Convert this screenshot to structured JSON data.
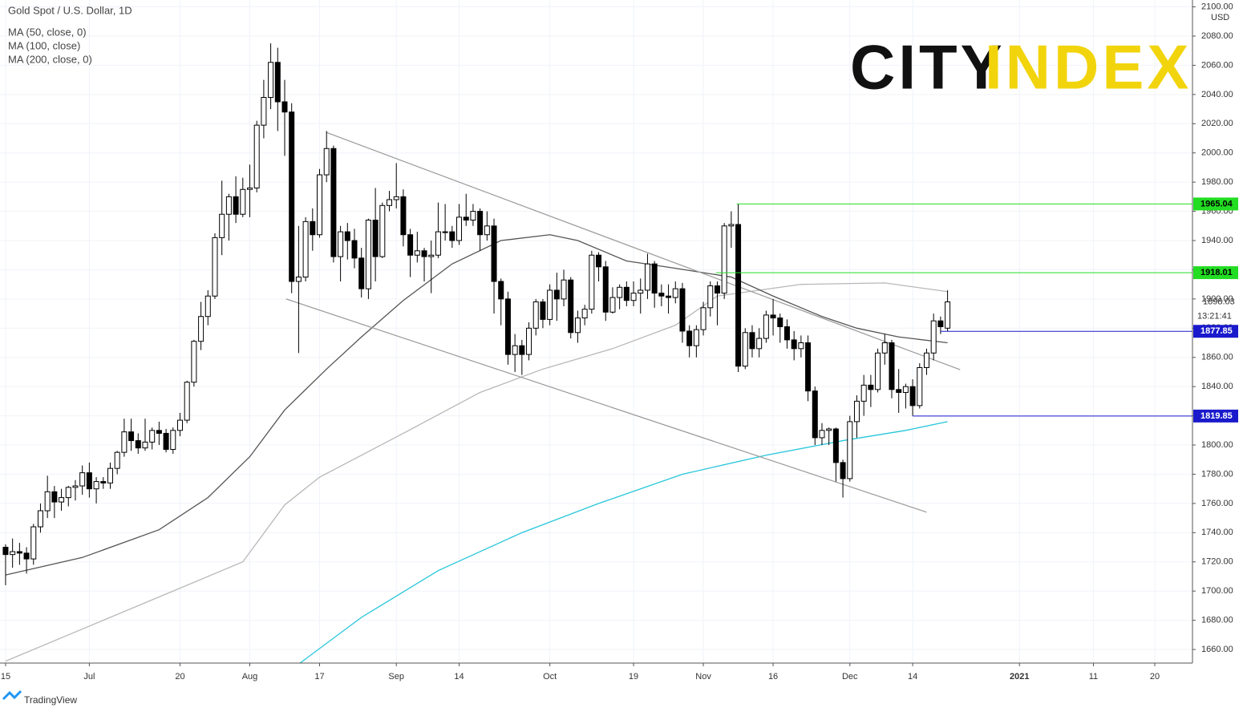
{
  "chart_data": {
    "type": "candlestick",
    "title": "Gold Spot / U.S. Dollar, 1D",
    "currency": "USD",
    "countdown": "13:21:41",
    "logo": {
      "left": "CITY",
      "right": "INDEX"
    },
    "footer": "TradingView",
    "xlim": [
      -0.8,
      170.1
    ],
    "ylim": [
      1650.7,
      2104.7
    ],
    "grid": true,
    "xticks": [
      {
        "value": 0,
        "label": "15"
      },
      {
        "value": 12,
        "label": "Jul"
      },
      {
        "value": 25,
        "label": "20"
      },
      {
        "value": 35,
        "label": "Aug"
      },
      {
        "value": 45,
        "label": "17"
      },
      {
        "value": 56,
        "label": "Sep"
      },
      {
        "value": 65,
        "label": "14"
      },
      {
        "value": 78,
        "label": "Oct"
      },
      {
        "value": 90,
        "label": "19"
      },
      {
        "value": 100,
        "label": "Nov"
      },
      {
        "value": 110,
        "label": "16"
      },
      {
        "value": 121,
        "label": "Dec"
      },
      {
        "value": 130,
        "label": "14"
      },
      {
        "value": 145.3,
        "label": "2021"
      },
      {
        "value": 155.9,
        "label": "11"
      },
      {
        "value": 164.7,
        "label": "20"
      }
    ],
    "yticks": [
      {
        "value": 1660,
        "label": "1660.00"
      },
      {
        "value": 1680,
        "label": "1680.00"
      },
      {
        "value": 1700,
        "label": "1700.00"
      },
      {
        "value": 1720,
        "label": "1720.00"
      },
      {
        "value": 1740,
        "label": "1740.00"
      },
      {
        "value": 1760,
        "label": "1760.00"
      },
      {
        "value": 1780,
        "label": "1780.00"
      },
      {
        "value": 1800,
        "label": "1800.00"
      },
      {
        "value": 1820,
        "label": "1820.00"
      },
      {
        "value": 1840,
        "label": "1840.00"
      },
      {
        "value": 1860,
        "label": "1860.00"
      },
      {
        "value": 1880,
        "label": "1880.00"
      },
      {
        "value": 1900,
        "label": "1900.00"
      },
      {
        "value": 1920,
        "label": "1920.00"
      },
      {
        "value": 1940,
        "label": "1940.00"
      },
      {
        "value": 1960,
        "label": "1960.00"
      },
      {
        "value": 1980,
        "label": "1980.00"
      },
      {
        "value": 2000,
        "label": "2000.00"
      },
      {
        "value": 2020,
        "label": "2020.00"
      },
      {
        "value": 2040,
        "label": "2040.00"
      },
      {
        "value": 2060,
        "label": "2060.00"
      },
      {
        "value": 2080,
        "label": "2080.00"
      },
      {
        "value": 2100,
        "label": "2100.00"
      }
    ],
    "up_color": "#ffffff",
    "down_color": "#000000",
    "ohlc": [
      [
        1730,
        1732,
        1704,
        1725
      ],
      [
        1725,
        1736,
        1716,
        1727
      ],
      [
        1727,
        1733,
        1718,
        1726
      ],
      [
        1726,
        1730,
        1712,
        1722
      ],
      [
        1722,
        1746,
        1718,
        1744
      ],
      [
        1744,
        1760,
        1740,
        1755
      ],
      [
        1755,
        1779,
        1750,
        1768
      ],
      [
        1768,
        1772,
        1750,
        1761
      ],
      [
        1761,
        1770,
        1755,
        1764
      ],
      [
        1764,
        1772,
        1758,
        1771
      ],
      [
        1771,
        1776,
        1762,
        1772
      ],
      [
        1772,
        1786,
        1766,
        1781
      ],
      [
        1781,
        1788,
        1764,
        1770
      ],
      [
        1770,
        1778,
        1760,
        1775
      ],
      [
        1775,
        1778,
        1770,
        1774
      ],
      [
        1774,
        1788,
        1770,
        1784
      ],
      [
        1784,
        1796,
        1780,
        1795
      ],
      [
        1795,
        1818,
        1792,
        1809
      ],
      [
        1809,
        1818,
        1796,
        1803
      ],
      [
        1803,
        1808,
        1794,
        1798
      ],
      [
        1798,
        1818,
        1796,
        1802
      ],
      [
        1802,
        1812,
        1797,
        1810
      ],
      [
        1810,
        1816,
        1800,
        1808
      ],
      [
        1808,
        1811,
        1795,
        1797
      ],
      [
        1797,
        1812,
        1794,
        1810
      ],
      [
        1810,
        1822,
        1806,
        1817
      ],
      [
        1817,
        1844,
        1815,
        1843
      ],
      [
        1843,
        1872,
        1840,
        1871
      ],
      [
        1871,
        1898,
        1865,
        1888
      ],
      [
        1888,
        1906,
        1882,
        1902
      ],
      [
        1902,
        1945,
        1900,
        1942
      ],
      [
        1942,
        1981,
        1930,
        1958
      ],
      [
        1958,
        1972,
        1940,
        1970
      ],
      [
        1970,
        1984,
        1952,
        1958
      ],
      [
        1958,
        1983,
        1956,
        1975
      ],
      [
        1975,
        1992,
        1956,
        1976
      ],
      [
        1976,
        2022,
        1973,
        2019
      ],
      [
        2019,
        2050,
        2010,
        2038
      ],
      [
        2038,
        2075,
        2030,
        2062
      ],
      [
        2062,
        2072,
        2015,
        2035
      ],
      [
        2035,
        2050,
        1998,
        2028
      ],
      [
        2028,
        2034,
        1904,
        1912
      ],
      [
        1912,
        1950,
        1863,
        1915
      ],
      [
        1915,
        1956,
        1912,
        1953
      ],
      [
        1953,
        1962,
        1933,
        1944
      ],
      [
        1944,
        1989,
        1942,
        1985
      ],
      [
        1985,
        2015,
        1980,
        2003
      ],
      [
        2003,
        2005,
        1925,
        1929
      ],
      [
        1929,
        1950,
        1912,
        1946
      ],
      [
        1946,
        1952,
        1927,
        1940
      ],
      [
        1940,
        1948,
        1921,
        1928
      ],
      [
        1928,
        1935,
        1901,
        1907
      ],
      [
        1907,
        1955,
        1900,
        1954
      ],
      [
        1954,
        1976,
        1912,
        1929
      ],
      [
        1929,
        1966,
        1928,
        1964
      ],
      [
        1964,
        1974,
        1960,
        1968
      ],
      [
        1968,
        1993,
        1962,
        1970
      ],
      [
        1970,
        1975,
        1936,
        1944
      ],
      [
        1944,
        1948,
        1915,
        1930
      ],
      [
        1930,
        1946,
        1925,
        1933
      ],
      [
        1933,
        1935,
        1912,
        1929
      ],
      [
        1929,
        1940,
        1904,
        1930
      ],
      [
        1930,
        1966,
        1928,
        1946
      ],
      [
        1946,
        1965,
        1940,
        1946
      ],
      [
        1946,
        1950,
        1935,
        1940
      ],
      [
        1940,
        1965,
        1937,
        1956
      ],
      [
        1956,
        1972,
        1950,
        1954
      ],
      [
        1954,
        1965,
        1950,
        1960
      ],
      [
        1960,
        1962,
        1933,
        1944
      ],
      [
        1944,
        1960,
        1940,
        1950
      ],
      [
        1950,
        1955,
        1890,
        1912
      ],
      [
        1912,
        1914,
        1882,
        1900
      ],
      [
        1900,
        1905,
        1855,
        1862
      ],
      [
        1862,
        1876,
        1850,
        1868
      ],
      [
        1868,
        1872,
        1848,
        1862
      ],
      [
        1862,
        1884,
        1858,
        1880
      ],
      [
        1880,
        1900,
        1875,
        1898
      ],
      [
        1898,
        1900,
        1880,
        1886
      ],
      [
        1886,
        1910,
        1882,
        1906
      ],
      [
        1906,
        1918,
        1885,
        1900
      ],
      [
        1900,
        1920,
        1895,
        1913
      ],
      [
        1913,
        1915,
        1873,
        1877
      ],
      [
        1877,
        1892,
        1870,
        1887
      ],
      [
        1887,
        1896,
        1882,
        1893
      ],
      [
        1893,
        1933,
        1890,
        1930
      ],
      [
        1930,
        1932,
        1912,
        1922
      ],
      [
        1922,
        1926,
        1885,
        1891
      ],
      [
        1891,
        1908,
        1890,
        1901
      ],
      [
        1901,
        1910,
        1893,
        1908
      ],
      [
        1908,
        1912,
        1895,
        1899
      ],
      [
        1899,
        1912,
        1895,
        1904
      ],
      [
        1904,
        1914,
        1890,
        1906
      ],
      [
        1906,
        1931,
        1900,
        1924
      ],
      [
        1924,
        1926,
        1894,
        1904
      ],
      [
        1904,
        1910,
        1895,
        1902
      ],
      [
        1902,
        1910,
        1890,
        1901
      ],
      [
        1901,
        1912,
        1897,
        1907
      ],
      [
        1907,
        1911,
        1870,
        1878
      ],
      [
        1878,
        1882,
        1860,
        1868
      ],
      [
        1868,
        1882,
        1860,
        1879
      ],
      [
        1879,
        1898,
        1875,
        1894
      ],
      [
        1894,
        1912,
        1888,
        1909
      ],
      [
        1909,
        1912,
        1882,
        1904
      ],
      [
        1904,
        1952,
        1900,
        1950
      ],
      [
        1950,
        1960,
        1935,
        1951
      ],
      [
        1951,
        1965,
        1850,
        1854
      ],
      [
        1854,
        1880,
        1852,
        1877
      ],
      [
        1877,
        1882,
        1860,
        1866
      ],
      [
        1866,
        1880,
        1860,
        1873
      ],
      [
        1873,
        1892,
        1870,
        1889
      ],
      [
        1889,
        1900,
        1875,
        1887
      ],
      [
        1887,
        1890,
        1870,
        1881
      ],
      [
        1881,
        1886,
        1866,
        1872
      ],
      [
        1872,
        1878,
        1858,
        1866
      ],
      [
        1866,
        1875,
        1860,
        1870
      ],
      [
        1870,
        1875,
        1830,
        1837
      ],
      [
        1837,
        1840,
        1800,
        1805
      ],
      [
        1805,
        1815,
        1800,
        1810
      ],
      [
        1810,
        1812,
        1800,
        1811
      ],
      [
        1811,
        1812,
        1775,
        1788
      ],
      [
        1788,
        1790,
        1764,
        1777
      ],
      [
        1777,
        1820,
        1775,
        1816
      ],
      [
        1816,
        1834,
        1805,
        1830
      ],
      [
        1830,
        1848,
        1820,
        1841
      ],
      [
        1841,
        1848,
        1826,
        1838
      ],
      [
        1838,
        1866,
        1836,
        1863
      ],
      [
        1863,
        1876,
        1855,
        1870
      ],
      [
        1870,
        1872,
        1832,
        1838
      ],
      [
        1838,
        1852,
        1822,
        1836
      ],
      [
        1836,
        1842,
        1825,
        1840
      ],
      [
        1840,
        1845,
        1820,
        1827
      ],
      [
        1827,
        1856,
        1825,
        1853
      ],
      [
        1853,
        1866,
        1848,
        1863
      ],
      [
        1863,
        1890,
        1858,
        1885
      ],
      [
        1885,
        1888,
        1876,
        1881
      ],
      [
        1880,
        1906,
        1878,
        1898
      ]
    ],
    "series": [
      {
        "name": "MA (200, close, 0)",
        "color": "#26c6da",
        "x": [
          42,
          51,
          62,
          74,
          85,
          97,
          109,
          120,
          129,
          135
        ],
        "values": [
          1650,
          1682,
          1714,
          1740,
          1760,
          1780,
          1793,
          1803,
          1810,
          1816
        ]
      },
      {
        "name": "MA (100, close)",
        "color": "#b8b8b8",
        "x": [
          0,
          11,
          22,
          34,
          40,
          45,
          57,
          68,
          77,
          87,
          96,
          102,
          114,
          126,
          135
        ],
        "values": [
          1652,
          1674,
          1696,
          1720,
          1759,
          1778,
          1808,
          1836,
          1852,
          1866,
          1882,
          1902,
          1910,
          1911,
          1905
        ]
      },
      {
        "name": "MA (50, close, 0)",
        "color": "#555555",
        "x": [
          0,
          11,
          22,
          29,
          35,
          40,
          46,
          51,
          57,
          64,
          71,
          78,
          82,
          89,
          96,
          104,
          110,
          117,
          122,
          128,
          135
        ],
        "values": [
          1711,
          1723,
          1742,
          1764,
          1792,
          1824,
          1852,
          1874,
          1899,
          1924,
          1940,
          1944,
          1940,
          1926,
          1921,
          1915,
          1902,
          1888,
          1880,
          1874,
          1870
        ]
      }
    ],
    "trendlines": [
      {
        "color": "#999999",
        "x": [
          46,
          136.8
        ],
        "y": [
          2014,
          1851.6
        ]
      },
      {
        "color": "#999999",
        "x": [
          40.2,
          132
        ],
        "y": [
          1900,
          1754
        ]
      }
    ],
    "price_lines": [
      {
        "value": 1965.04,
        "start": 104.8,
        "color": "#22dd22",
        "text_color": "#000000"
      },
      {
        "value": 1918.01,
        "start": 101.8,
        "color": "#22dd22",
        "text_color": "#000000"
      },
      {
        "value": 1877.85,
        "start": 134,
        "color": "#1a1acc",
        "text_color": "#ffffff"
      },
      {
        "value": 1819.85,
        "start": 130,
        "color": "#1a1acc",
        "text_color": "#ffffff"
      }
    ],
    "last_price": 1898.03
  }
}
